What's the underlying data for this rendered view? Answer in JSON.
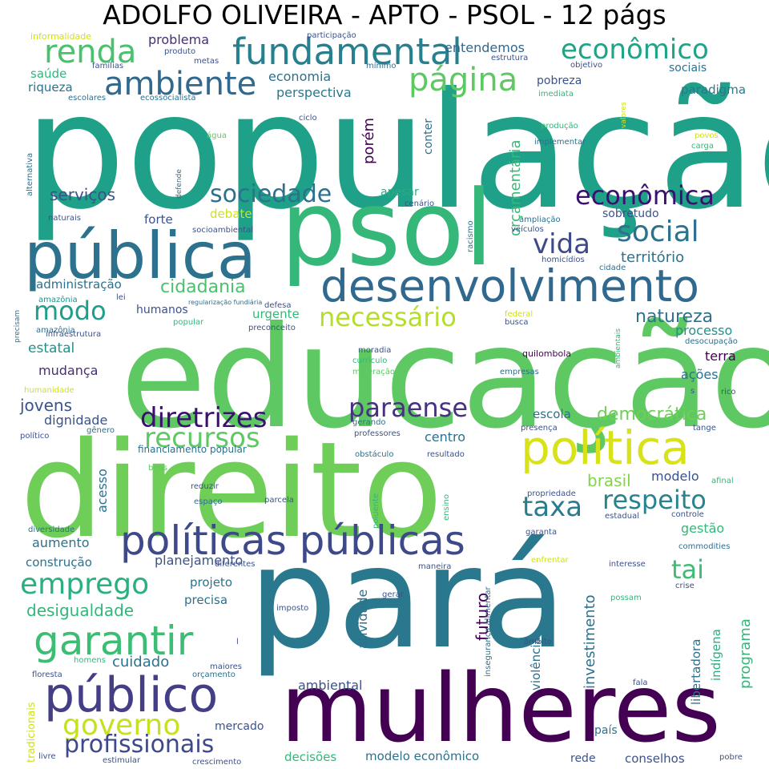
{
  "title": "ADOLFO OLIVEIRA - APTO - PSOL - 12 págs",
  "palette": [
    "#440154",
    "#472c7a",
    "#3b518b",
    "#2c718e",
    "#21908d",
    "#27ad81",
    "#5cc863",
    "#aadc32",
    "#fde725"
  ],
  "words": [
    {
      "text": "população",
      "color": "#1fa088"
    },
    {
      "text": "educação",
      "color": "#5ec962"
    },
    {
      "text": "direito",
      "color": "#6ece58"
    },
    {
      "text": "pará",
      "color": "#2a788e"
    },
    {
      "text": "psol",
      "color": "#35b779"
    },
    {
      "text": "mulheres",
      "color": "#440154"
    },
    {
      "text": "pública",
      "color": "#2c728e"
    },
    {
      "text": "desenvolvimento",
      "color": "#31688e"
    },
    {
      "text": "políticas públicas",
      "color": "#3e4989"
    },
    {
      "text": "público",
      "color": "#433e85"
    },
    {
      "text": "política",
      "color": "#d8e219"
    },
    {
      "text": "fundamental",
      "color": "#27808e"
    },
    {
      "text": "garantir",
      "color": "#3dbc74"
    },
    {
      "text": "ambiente",
      "color": "#31688e"
    },
    {
      "text": "renda",
      "color": "#4ac16d"
    },
    {
      "text": "página",
      "color": "#5ec962"
    },
    {
      "text": "econômico",
      "color": "#20a386"
    },
    {
      "text": "econômica",
      "color": "#3b0f70"
    },
    {
      "text": "sociedade",
      "color": "#2c718e"
    },
    {
      "text": "social",
      "color": "#2c718e"
    },
    {
      "text": "vida",
      "color": "#3e4989"
    },
    {
      "text": "modo",
      "color": "#1f9e89"
    },
    {
      "text": "necessário",
      "color": "#b5de2b"
    },
    {
      "text": "diretrizes",
      "color": "#3b0f70"
    },
    {
      "text": "recursos",
      "color": "#5ec962"
    },
    {
      "text": "paraense",
      "color": "#46327e"
    },
    {
      "text": "taxa",
      "color": "#287c8e"
    },
    {
      "text": "respeito",
      "color": "#25848e"
    },
    {
      "text": "emprego",
      "color": "#2ab07f"
    },
    {
      "text": "governo",
      "color": "#c8e020"
    },
    {
      "text": "profissionais",
      "color": "#3e4989"
    },
    {
      "text": "tai",
      "color": "#3dbc74"
    },
    {
      "text": "democrática",
      "color": "#6ece58"
    },
    {
      "text": "natureza",
      "color": "#2c718e"
    },
    {
      "text": "cidadania",
      "color": "#4ac16d"
    },
    {
      "text": "serviços",
      "color": "#3b528b"
    },
    {
      "text": "jovens",
      "color": "#3b528b"
    },
    {
      "text": "desigualdade",
      "color": "#32b67a"
    },
    {
      "text": "cuidado",
      "color": "#2c718e"
    },
    {
      "text": "brasil",
      "color": "#84d44b"
    },
    {
      "text": "território",
      "color": "#2c718e"
    },
    {
      "text": "problema",
      "color": "#472d7b"
    },
    {
      "text": "entendemos",
      "color": "#31688e"
    },
    {
      "text": "economia",
      "color": "#2c718e"
    },
    {
      "text": "perspectiva",
      "color": "#2a788e"
    },
    {
      "text": "pobreza",
      "color": "#3b528b"
    },
    {
      "text": "paradigma",
      "color": "#2a788e"
    },
    {
      "text": "sociais",
      "color": "#2c718e"
    },
    {
      "text": "saúde",
      "color": "#31b57b"
    },
    {
      "text": "riqueza",
      "color": "#2c718e"
    },
    {
      "text": "porém",
      "color": "#440154"
    },
    {
      "text": "conter",
      "color": "#2c718e"
    },
    {
      "text": "orçamentária",
      "color": "#38b977"
    },
    {
      "text": "apesar",
      "color": "#26ad81"
    },
    {
      "text": "forte",
      "color": "#3b528b"
    },
    {
      "text": "debate",
      "color": "#d0e11c"
    },
    {
      "text": "sobretudo",
      "color": "#3b528b"
    },
    {
      "text": "administração",
      "color": "#2c718e"
    },
    {
      "text": "humanos",
      "color": "#3b528b"
    },
    {
      "text": "urgente",
      "color": "#35b779"
    },
    {
      "text": "processo",
      "color": "#21918c"
    },
    {
      "text": "terra",
      "color": "#440154"
    },
    {
      "text": "ações",
      "color": "#2c718e"
    },
    {
      "text": "estatal",
      "color": "#21918c"
    },
    {
      "text": "mudança",
      "color": "#472d7b"
    },
    {
      "text": "dignidade",
      "color": "#3b528b"
    },
    {
      "text": "escola",
      "color": "#2c718e"
    },
    {
      "text": "centro",
      "color": "#2c718e"
    },
    {
      "text": "modelo",
      "color": "#3b528b"
    },
    {
      "text": "acesso",
      "color": "#2c718e"
    },
    {
      "text": "aumento",
      "color": "#2c718e"
    },
    {
      "text": "construção",
      "color": "#2c718e"
    },
    {
      "text": "planejamento",
      "color": "#3b528b"
    },
    {
      "text": "projeto",
      "color": "#2c718e"
    },
    {
      "text": "precisa",
      "color": "#2c718e"
    },
    {
      "text": "futuro",
      "color": "#440154"
    },
    {
      "text": "atividade",
      "color": "#2c718e"
    },
    {
      "text": "investimento",
      "color": "#2c718e"
    },
    {
      "text": "violência",
      "color": "#2c718e"
    },
    {
      "text": "libertadora",
      "color": "#2c718e"
    },
    {
      "text": "indígena",
      "color": "#2ab07f"
    },
    {
      "text": "programa",
      "color": "#35b779"
    },
    {
      "text": "gestão",
      "color": "#35b779"
    },
    {
      "text": "ambiental",
      "color": "#3b528b"
    },
    {
      "text": "mercado",
      "color": "#3b528b"
    },
    {
      "text": "decisões",
      "color": "#35b779"
    },
    {
      "text": "modelo econômico",
      "color": "#2c718e"
    },
    {
      "text": "rede",
      "color": "#3b528b"
    },
    {
      "text": "conselhos",
      "color": "#3b528b"
    },
    {
      "text": "país",
      "color": "#2c718e"
    },
    {
      "text": "financiamento popular",
      "color": "#2c718e"
    },
    {
      "text": "informalidade",
      "color": "#d0e11c"
    },
    {
      "text": "produto",
      "color": "#3b528b"
    },
    {
      "text": "participação",
      "color": "#3b528b"
    },
    {
      "text": "metas",
      "color": "#3b528b"
    },
    {
      "text": "mínimo",
      "color": "#2c718e"
    },
    {
      "text": "estrutura",
      "color": "#3b528b"
    },
    {
      "text": "objetivo",
      "color": "#3b528b"
    },
    {
      "text": "famílias",
      "color": "#3b528b"
    },
    {
      "text": "escolares",
      "color": "#2c718e"
    },
    {
      "text": "ecossocialista",
      "color": "#2c718e"
    },
    {
      "text": "imediata",
      "color": "#35b779"
    },
    {
      "text": "valores",
      "color": "#d0e11c"
    },
    {
      "text": "ciclo",
      "color": "#3b528b"
    },
    {
      "text": "água",
      "color": "#5ec962"
    },
    {
      "text": "produção",
      "color": "#35b779"
    },
    {
      "text": "implementar",
      "color": "#2c718e"
    },
    {
      "text": "povos",
      "color": "#d0e11c"
    },
    {
      "text": "carga",
      "color": "#35b779"
    },
    {
      "text": "alternativa",
      "color": "#2c718e"
    },
    {
      "text": "amazônia",
      "color": "#2c718e"
    },
    {
      "text": "defende",
      "color": "#2c718e"
    },
    {
      "text": "cenário",
      "color": "#3b528b"
    },
    {
      "text": "naturais",
      "color": "#3b528b"
    },
    {
      "text": "ampliação",
      "color": "#2c718e"
    },
    {
      "text": "veículos",
      "color": "#3b528b"
    },
    {
      "text": "racismo",
      "color": "#2c718e"
    },
    {
      "text": "socioambiental",
      "color": "#3b528b"
    },
    {
      "text": "homicídios",
      "color": "#3b528b"
    },
    {
      "text": "cidade",
      "color": "#2c718e"
    },
    {
      "text": "amazônia",
      "color": "#21918c"
    },
    {
      "text": "lei",
      "color": "#3b528b"
    },
    {
      "text": "regularização fundiária",
      "color": "#2c718e"
    },
    {
      "text": "precisam",
      "color": "#2c718e"
    },
    {
      "text": "infraestrutura",
      "color": "#3b528b"
    },
    {
      "text": "popular",
      "color": "#35b779"
    },
    {
      "text": "defesa",
      "color": "#3b528b"
    },
    {
      "text": "preconceito",
      "color": "#3b528b"
    },
    {
      "text": "federal",
      "color": "#d0e11c"
    },
    {
      "text": "busca",
      "color": "#3b528b"
    },
    {
      "text": "ambientais",
      "color": "#35b779"
    },
    {
      "text": "desocupação",
      "color": "#2c718e"
    },
    {
      "text": "moradia",
      "color": "#3b528b"
    },
    {
      "text": "currículo",
      "color": "#35b779"
    },
    {
      "text": "mineração",
      "color": "#5ec962"
    },
    {
      "text": "quilombola",
      "color": "#440154"
    },
    {
      "text": "empresas",
      "color": "#2c718e"
    },
    {
      "text": "s",
      "color": "#3b528b"
    },
    {
      "text": "rico",
      "color": "#3b528b"
    },
    {
      "text": "humanidade",
      "color": "#d0e11c"
    },
    {
      "text": "gerando",
      "color": "#2c718e"
    },
    {
      "text": "professores",
      "color": "#3b528b"
    },
    {
      "text": "político",
      "color": "#3b528b"
    },
    {
      "text": "gênero",
      "color": "#2c718e"
    },
    {
      "text": "presença",
      "color": "#3b528b"
    },
    {
      "text": "tange",
      "color": "#3b528b"
    },
    {
      "text": "obstáculo",
      "color": "#2c718e"
    },
    {
      "text": "resultado",
      "color": "#3b528b"
    },
    {
      "text": "bens",
      "color": "#5ec962"
    },
    {
      "text": "afinal",
      "color": "#35b779"
    },
    {
      "text": "reduzir",
      "color": "#3b528b"
    },
    {
      "text": "espaço",
      "color": "#2c718e"
    },
    {
      "text": "parcela",
      "color": "#3b528b"
    },
    {
      "text": "poluente",
      "color": "#35b779"
    },
    {
      "text": "ensino",
      "color": "#35b779"
    },
    {
      "text": "propriedade",
      "color": "#3b528b"
    },
    {
      "text": "estadual",
      "color": "#3b528b"
    },
    {
      "text": "controle",
      "color": "#3b528b"
    },
    {
      "text": "diversidade",
      "color": "#2c718e"
    },
    {
      "text": "garanta",
      "color": "#3b528b"
    },
    {
      "text": "commodities",
      "color": "#2c718e"
    },
    {
      "text": "diferentes",
      "color": "#3b528b"
    },
    {
      "text": "maneira",
      "color": "#3b528b"
    },
    {
      "text": "enfrentar",
      "color": "#d0e11c"
    },
    {
      "text": "interesse",
      "color": "#3b528b"
    },
    {
      "text": "crise",
      "color": "#3b528b"
    },
    {
      "text": "imposto",
      "color": "#3b528b"
    },
    {
      "text": "gerar",
      "color": "#3b528b"
    },
    {
      "text": "insegurança alimentar",
      "color": "#2c718e"
    },
    {
      "text": "possam",
      "color": "#35b779"
    },
    {
      "text": "l",
      "color": "#3b528b"
    },
    {
      "text": "âmbito",
      "color": "#3b528b"
    },
    {
      "text": "homens",
      "color": "#35b779"
    },
    {
      "text": "maiores",
      "color": "#3b528b"
    },
    {
      "text": "floresta",
      "color": "#3b528b"
    },
    {
      "text": "orçamento",
      "color": "#2c718e"
    },
    {
      "text": "tradicionais",
      "color": "#d0e11c"
    },
    {
      "text": "fala",
      "color": "#3b528b"
    },
    {
      "text": "livre",
      "color": "#3b528b"
    },
    {
      "text": "estimular",
      "color": "#3b528b"
    },
    {
      "text": "crescimento",
      "color": "#3b528b"
    },
    {
      "text": "pobre",
      "color": "#3b528b"
    }
  ]
}
